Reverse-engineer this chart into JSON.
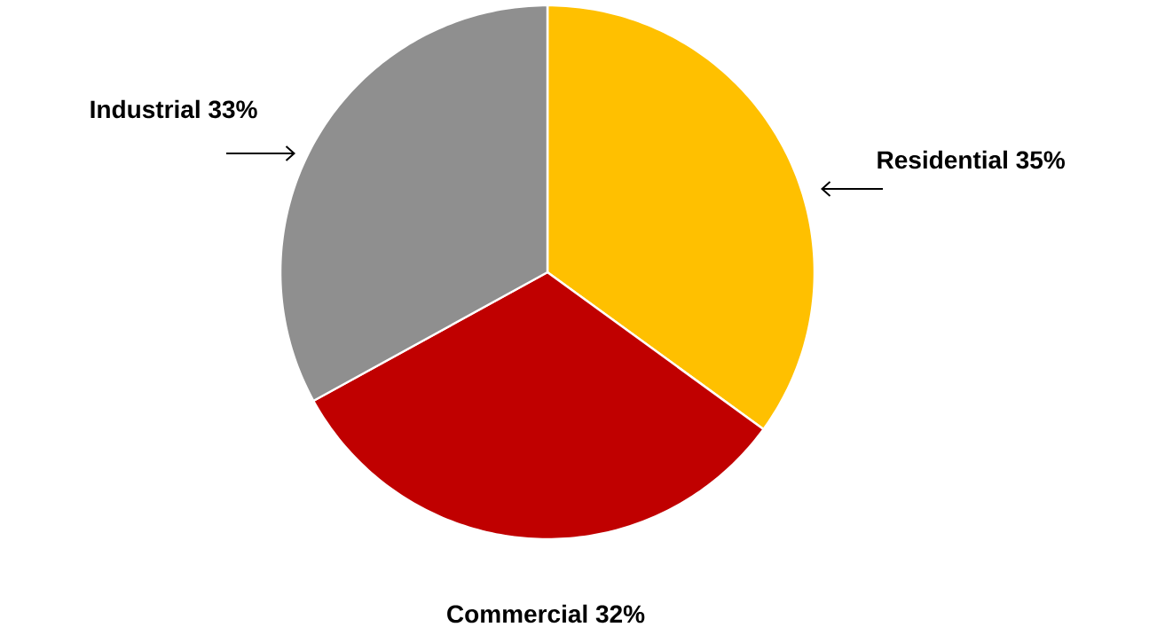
{
  "chart_data": {
    "type": "pie",
    "categories": [
      "Residential",
      "Commercial",
      "Industrial"
    ],
    "values": [
      35,
      32,
      33
    ],
    "value_labels": [
      "35%",
      "32%",
      "33%"
    ],
    "colors": [
      "#ffc000",
      "#c00000",
      "#8f8f8f"
    ]
  }
}
